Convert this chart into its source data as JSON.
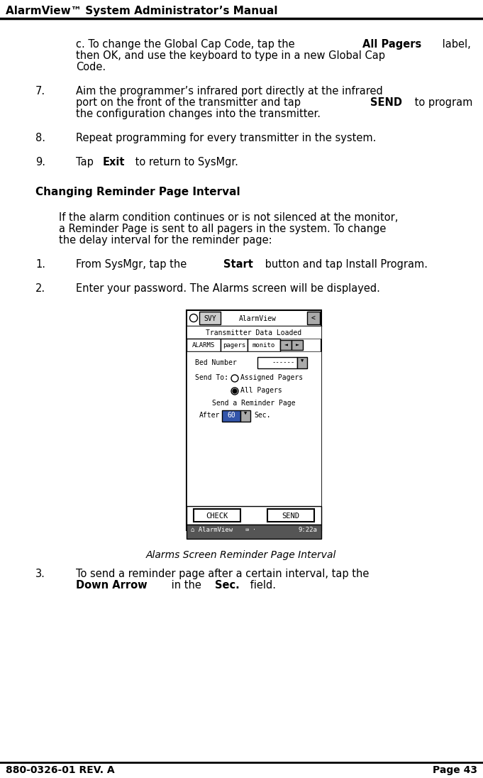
{
  "header_title": "AlarmView™ System Administrator’s Manual",
  "footer_left": "880-0326-01 REV. A",
  "footer_right": "Page 43",
  "background_color": "#ffffff",
  "figure_caption": "Alarms Screen Reminder Page Interval"
}
